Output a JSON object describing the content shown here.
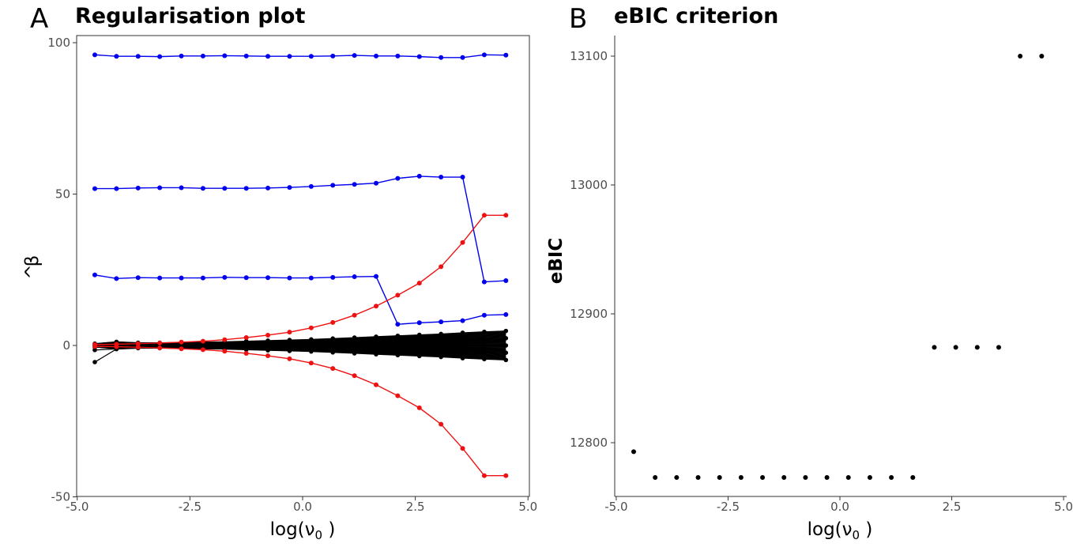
{
  "chart_data": [
    {
      "panel": "A",
      "title": "Regularisation plot",
      "type": "line",
      "xlabel": "log(ν₀ )",
      "ylabel": "β̂",
      "xlim": [
        -5,
        5
      ],
      "ylim": [
        -50,
        100
      ],
      "xticks": [
        -5.0,
        -2.5,
        0.0,
        2.5,
        5.0
      ],
      "xtick_labels": [
        "-5.0",
        "-2.5",
        "0.0",
        "2.5",
        "5.0"
      ],
      "yticks": [
        -50,
        0,
        50,
        100
      ],
      "ytick_labels": [
        "-50",
        "0",
        "50",
        "100"
      ],
      "x": [
        -4.61,
        -4.13,
        -3.65,
        -3.17,
        -2.69,
        -2.21,
        -1.73,
        -1.25,
        -0.77,
        -0.29,
        0.19,
        0.67,
        1.15,
        1.63,
        2.11,
        2.59,
        3.07,
        3.55,
        4.03,
        4.51
      ],
      "series": [
        {
          "name": "signal-1",
          "color": "#0000ee",
          "values": [
            96,
            95.5,
            95.5,
            95.4,
            95.6,
            95.6,
            95.7,
            95.6,
            95.5,
            95.5,
            95.5,
            95.6,
            95.8,
            95.6,
            95.6,
            95.4,
            95.1,
            95.1,
            96.0,
            95.9
          ]
        },
        {
          "name": "signal-2",
          "color": "#0000ee",
          "values": [
            51.8,
            51.8,
            52.0,
            52.1,
            52.1,
            51.9,
            51.9,
            51.9,
            52.0,
            52.2,
            52.5,
            52.9,
            53.2,
            53.6,
            55.2,
            55.9,
            55.6,
            55.6,
            21.0,
            21.4
          ]
        },
        {
          "name": "signal-3",
          "color": "#0000ee",
          "values": [
            23.3,
            22.1,
            22.4,
            22.3,
            22.3,
            22.3,
            22.5,
            22.4,
            22.4,
            22.3,
            22.3,
            22.5,
            22.7,
            22.8,
            7.0,
            7.5,
            7.8,
            8.2,
            10.0,
            10.2
          ]
        },
        {
          "name": "red-positive",
          "color": "#ee1111",
          "values": [
            0.3,
            0.4,
            0.6,
            0.8,
            1.1,
            1.4,
            1.9,
            2.6,
            3.4,
            4.4,
            5.8,
            7.6,
            10.0,
            13.0,
            16.6,
            20.6,
            26.0,
            34.0,
            43.0,
            43.0
          ]
        },
        {
          "name": "red-negative",
          "color": "#ee1111",
          "values": [
            -0.3,
            -0.4,
            -0.6,
            -0.8,
            -1.1,
            -1.4,
            -1.9,
            -2.6,
            -3.4,
            -4.4,
            -5.8,
            -7.6,
            -10.0,
            -13.0,
            -16.6,
            -20.6,
            -26.0,
            -34.0,
            -43.0,
            -43.0
          ]
        }
      ],
      "noise_bundle": {
        "color": "#000000",
        "description_count": 0,
        "max_abs_by_x": [
          5.5,
          1.2,
          0.9,
          0.9,
          1.0,
          1.1,
          1.2,
          1.4,
          1.6,
          1.8,
          2.0,
          2.3,
          2.6,
          2.9,
          3.2,
          3.5,
          3.8,
          4.2,
          4.5,
          4.8
        ]
      }
    },
    {
      "panel": "B",
      "title": "eBIC criterion",
      "type": "scatter",
      "xlabel": "log(ν₀ )",
      "ylabel": "eBIC",
      "xlim": [
        -5,
        5
      ],
      "ylim": [
        12760,
        13118
      ],
      "xticks": [
        -5.0,
        -2.5,
        0.0,
        2.5,
        5.0
      ],
      "xtick_labels": [
        "-5.0",
        "-2.5",
        "0.0",
        "2.5",
        "5.0"
      ],
      "yticks": [
        12800,
        12900,
        13000,
        13100
      ],
      "ytick_labels": [
        "12800",
        "12900",
        "13000",
        "13100"
      ],
      "x": [
        -4.61,
        -4.13,
        -3.65,
        -3.17,
        -2.69,
        -2.21,
        -1.73,
        -1.25,
        -0.77,
        -0.29,
        0.19,
        0.67,
        1.15,
        1.63,
        2.11,
        2.59,
        3.07,
        3.55,
        4.03,
        4.51
      ],
      "y": [
        12793,
        12773,
        12773,
        12773,
        12773,
        12773,
        12773,
        12773,
        12773,
        12773,
        12773,
        12773,
        12773,
        12773,
        12874,
        12874,
        12874,
        12874,
        13100,
        13100
      ]
    }
  ],
  "panel_a": {
    "letter": "A",
    "title": "Regularisation plot",
    "xlabel_base": "log(ν",
    "xlabel_sub": "0",
    "xlabel_close": " )",
    "ylabel_hat": "^",
    "ylabel": "β"
  },
  "panel_b": {
    "letter": "B",
    "title": "eBIC criterion",
    "xlabel_base": "log(ν",
    "xlabel_sub": "0",
    "xlabel_close": " )",
    "ylabel": "eBIC"
  }
}
